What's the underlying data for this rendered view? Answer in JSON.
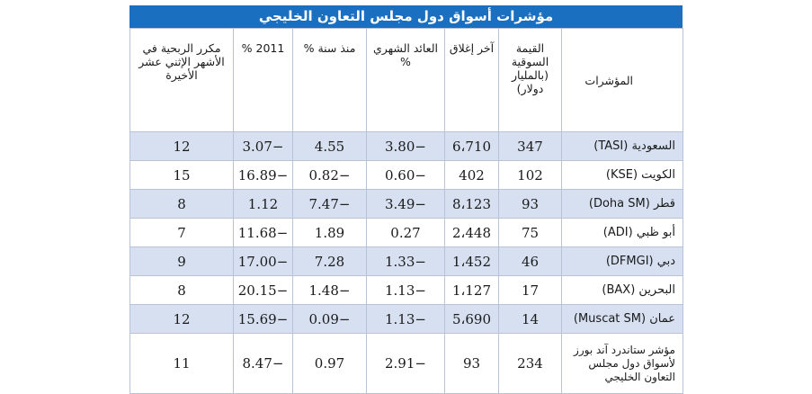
{
  "title": "مؤشرات أسواق دول مجلس التعاون الخليجي",
  "headers": [
    "المؤشرات",
    "القيمة السوقية (بالمليار دولار)",
    "آخر إغلاق",
    "العائد الشهري %",
    "منذ سنة %",
    "2011 %",
    "مكرر الربحية في الأشهر الإثني عشر الأخيرة"
  ],
  "rows": [
    {
      "name": "السعودية (TASI)",
      "cap": "347",
      "close": "6،710",
      "monthly": "−3.80",
      "year": "4.55",
      "y2011": "−3.07",
      "pe": "12"
    },
    {
      "name": "الكويت (KSE)",
      "cap": "102",
      "close": "402",
      "monthly": "−0.60",
      "year": "−0.82",
      "y2011": "−16.89",
      "pe": "15"
    },
    {
      "name": "قطر (Doha SM)",
      "cap": "93",
      "close": "8،123",
      "monthly": "−3.49",
      "year": "−7.47",
      "y2011": "1.12",
      "pe": "8"
    },
    {
      "name": "أبو ظبي (ADI)",
      "cap": "75",
      "close": "2،448",
      "monthly": "0.27",
      "year": "1.89",
      "y2011": "−11.68",
      "pe": "7"
    },
    {
      "name": "دبي (DFMGI)",
      "cap": "46",
      "close": "1،452",
      "monthly": "−1.33",
      "year": "7.28",
      "y2011": "−17.00",
      "pe": "9"
    },
    {
      "name": "البحرين (BAX)",
      "cap": "17",
      "close": "1،127",
      "monthly": "−1.13",
      "year": "−1.48",
      "y2011": "−20.15",
      "pe": "8"
    },
    {
      "name": "عمان (Muscat SM)",
      "cap": "14",
      "close": "5،690",
      "monthly": "−1.13",
      "year": "−0.09",
      "y2011": "−15.69",
      "pe": "12"
    },
    {
      "name": "مؤشر ستاندرد آند بورز لأسواق دول مجلس التعاون الخليجي",
      "cap": "234",
      "close": "93",
      "monthly": "−2.91",
      "year": "0.97",
      "y2011": "−8.47",
      "pe": "11"
    }
  ],
  "colors": {
    "title_bg": "#1b6fc0",
    "row_shade": "#d6e0f0",
    "border": "#b8c3d6"
  }
}
